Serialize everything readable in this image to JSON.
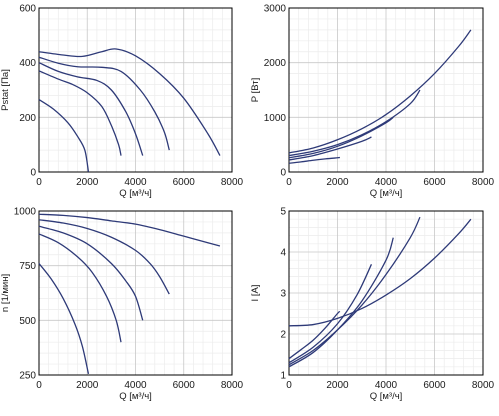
{
  "colors": {
    "curve": "#2e3a78",
    "grid_minor": "#ececec",
    "grid_major": "#c8c8c8",
    "axis": "#000000"
  },
  "chart_data": [
    {
      "id": "pstat",
      "type": "line",
      "xlabel": "Q [м³/ч]",
      "ylabel": "Pstat [Па]",
      "xlim": [
        0,
        8000
      ],
      "ylim": [
        0,
        600
      ],
      "xticks": [
        0,
        2000,
        4000,
        6000,
        8000
      ],
      "yticks": [
        0,
        200,
        400,
        600
      ],
      "grid": true,
      "series": [
        {
          "points": [
            [
              0,
              440
            ],
            [
              1000,
              428
            ],
            [
              1800,
              423
            ],
            [
              2600,
              440
            ],
            [
              3200,
              450
            ],
            [
              4000,
              425
            ],
            [
              5000,
              360
            ],
            [
              6000,
              270
            ],
            [
              7000,
              140
            ],
            [
              7500,
              60
            ]
          ]
        },
        {
          "points": [
            [
              0,
              420
            ],
            [
              800,
              398
            ],
            [
              1600,
              385
            ],
            [
              2600,
              383
            ],
            [
              3400,
              368
            ],
            [
              4200,
              300
            ],
            [
              4800,
              220
            ],
            [
              5200,
              145
            ],
            [
              5400,
              80
            ]
          ]
        },
        {
          "points": [
            [
              0,
              400
            ],
            [
              800,
              368
            ],
            [
              1600,
              348
            ],
            [
              2400,
              335
            ],
            [
              3000,
              300
            ],
            [
              3600,
              220
            ],
            [
              4000,
              140
            ],
            [
              4300,
              60
            ]
          ]
        },
        {
          "points": [
            [
              0,
              370
            ],
            [
              800,
              340
            ],
            [
              1400,
              320
            ],
            [
              2000,
              290
            ],
            [
              2600,
              240
            ],
            [
              3000,
              170
            ],
            [
              3300,
              100
            ],
            [
              3400,
              60
            ]
          ]
        },
        {
          "points": [
            [
              0,
              265
            ],
            [
              600,
              230
            ],
            [
              1200,
              180
            ],
            [
              1600,
              130
            ],
            [
              1900,
              80
            ],
            [
              2050,
              0
            ]
          ]
        }
      ]
    },
    {
      "id": "power",
      "type": "line",
      "xlabel": "Q [м³/ч]",
      "ylabel": "P [Вт]",
      "xlim": [
        0,
        8000
      ],
      "ylim": [
        0,
        3000
      ],
      "xticks": [
        0,
        2000,
        4000,
        6000,
        8000
      ],
      "yticks": [
        0,
        1000,
        2000,
        3000
      ],
      "grid": true,
      "series": [
        {
          "points": [
            [
              0,
              350
            ],
            [
              1000,
              440
            ],
            [
              2000,
              590
            ],
            [
              3000,
              790
            ],
            [
              4000,
              1050
            ],
            [
              5000,
              1390
            ],
            [
              6000,
              1800
            ],
            [
              7000,
              2300
            ],
            [
              7500,
              2600
            ]
          ]
        },
        {
          "points": [
            [
              0,
              300
            ],
            [
              1000,
              380
            ],
            [
              2000,
              500
            ],
            [
              3000,
              680
            ],
            [
              4000,
              920
            ],
            [
              5000,
              1250
            ],
            [
              5400,
              1500
            ]
          ]
        },
        {
          "points": [
            [
              0,
              260
            ],
            [
              1000,
              340
            ],
            [
              2000,
              470
            ],
            [
              3000,
              660
            ],
            [
              4000,
              900
            ],
            [
              4300,
              1000
            ]
          ]
        },
        {
          "points": [
            [
              0,
              220
            ],
            [
              1000,
              300
            ],
            [
              2000,
              420
            ],
            [
              3000,
              560
            ],
            [
              3400,
              640
            ]
          ]
        },
        {
          "points": [
            [
              0,
              160
            ],
            [
              500,
              185
            ],
            [
              1000,
              215
            ],
            [
              1500,
              240
            ],
            [
              2000,
              260
            ],
            [
              2100,
              265
            ]
          ]
        }
      ]
    },
    {
      "id": "speed",
      "type": "line",
      "xlabel": "Q [м³/ч]",
      "ylabel": "n [1/мин]",
      "xlim": [
        0,
        8000
      ],
      "ylim": [
        250,
        1000
      ],
      "xticks": [
        0,
        2000,
        4000,
        6000,
        8000
      ],
      "yticks": [
        250,
        500,
        750,
        1000
      ],
      "grid": true,
      "series": [
        {
          "points": [
            [
              0,
              985
            ],
            [
              1000,
              980
            ],
            [
              2000,
              970
            ],
            [
              3000,
              955
            ],
            [
              4000,
              940
            ],
            [
              5000,
              915
            ],
            [
              6000,
              885
            ],
            [
              7000,
              855
            ],
            [
              7500,
              840
            ]
          ]
        },
        {
          "points": [
            [
              0,
              960
            ],
            [
              1000,
              945
            ],
            [
              2000,
              920
            ],
            [
              3000,
              880
            ],
            [
              4000,
              820
            ],
            [
              4600,
              760
            ],
            [
              5000,
              700
            ],
            [
              5400,
              620
            ]
          ]
        },
        {
          "points": [
            [
              0,
              930
            ],
            [
              1000,
              900
            ],
            [
              2000,
              850
            ],
            [
              3000,
              760
            ],
            [
              3600,
              680
            ],
            [
              4000,
              610
            ],
            [
              4300,
              500
            ]
          ]
        },
        {
          "points": [
            [
              0,
              895
            ],
            [
              800,
              855
            ],
            [
              1600,
              790
            ],
            [
              2200,
              720
            ],
            [
              2800,
              610
            ],
            [
              3200,
              500
            ],
            [
              3400,
              400
            ]
          ]
        },
        {
          "points": [
            [
              0,
              760
            ],
            [
              500,
              690
            ],
            [
              1000,
              600
            ],
            [
              1500,
              480
            ],
            [
              1800,
              380
            ],
            [
              2050,
              255
            ]
          ]
        }
      ]
    },
    {
      "id": "current",
      "type": "line",
      "xlabel": "Q [м³/ч]",
      "ylabel": "I [A]",
      "xlim": [
        0,
        8000
      ],
      "ylim": [
        1,
        5
      ],
      "xticks": [
        0,
        2000,
        4000,
        6000,
        8000
      ],
      "yticks": [
        1,
        2,
        3,
        4,
        5
      ],
      "grid": true,
      "series": [
        {
          "points": [
            [
              0,
              2.2
            ],
            [
              1000,
              2.23
            ],
            [
              2000,
              2.38
            ],
            [
              3000,
              2.62
            ],
            [
              4000,
              2.95
            ],
            [
              5000,
              3.35
            ],
            [
              6000,
              3.85
            ],
            [
              7000,
              4.45
            ],
            [
              7500,
              4.8
            ]
          ]
        },
        {
          "points": [
            [
              0,
              1.25
            ],
            [
              1000,
              1.6
            ],
            [
              2000,
              2.1
            ],
            [
              3000,
              2.7
            ],
            [
              4000,
              3.45
            ],
            [
              5000,
              4.35
            ],
            [
              5400,
              4.85
            ]
          ]
        },
        {
          "points": [
            [
              0,
              1.2
            ],
            [
              1000,
              1.55
            ],
            [
              2000,
              2.1
            ],
            [
              3000,
              2.8
            ],
            [
              4000,
              3.8
            ],
            [
              4300,
              4.35
            ]
          ]
        },
        {
          "points": [
            [
              0,
              1.3
            ],
            [
              1000,
              1.68
            ],
            [
              2000,
              2.25
            ],
            [
              2800,
              2.95
            ],
            [
              3400,
              3.7
            ]
          ]
        },
        {
          "points": [
            [
              0,
              1.4
            ],
            [
              500,
              1.62
            ],
            [
              1000,
              1.85
            ],
            [
              1500,
              2.15
            ],
            [
              2000,
              2.5
            ],
            [
              2100,
              2.55
            ]
          ]
        }
      ]
    }
  ]
}
